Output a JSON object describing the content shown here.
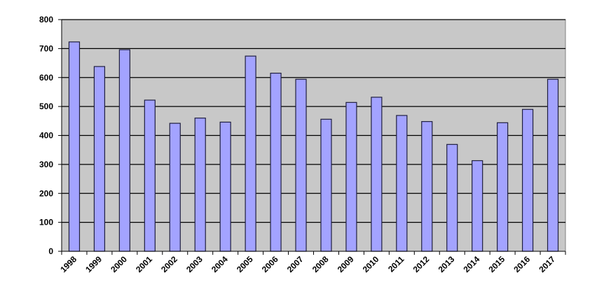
{
  "chart_data": {
    "type": "bar",
    "title": "",
    "xlabel": "",
    "ylabel": "",
    "categories": [
      "1998",
      "1999",
      "2000",
      "2001",
      "2002",
      "2003",
      "2004",
      "2005",
      "2006",
      "2007",
      "2008",
      "2009",
      "2010",
      "2011",
      "2012",
      "2013",
      "2014",
      "2015",
      "2016",
      "2017"
    ],
    "values": [
      723,
      638,
      696,
      522,
      442,
      460,
      446,
      674,
      615,
      594,
      456,
      514,
      532,
      469,
      448,
      369,
      313,
      444,
      490,
      594
    ],
    "ylim": [
      0,
      800
    ],
    "yticks": [
      0,
      100,
      200,
      300,
      400,
      500,
      600,
      700,
      800
    ],
    "grid": true,
    "legend": "none",
    "colors": {
      "bar": "#a3a3ff",
      "bar_edge": "#1f1f3f",
      "plot_background": "#c8c8c8",
      "gridline": "#000000"
    }
  }
}
